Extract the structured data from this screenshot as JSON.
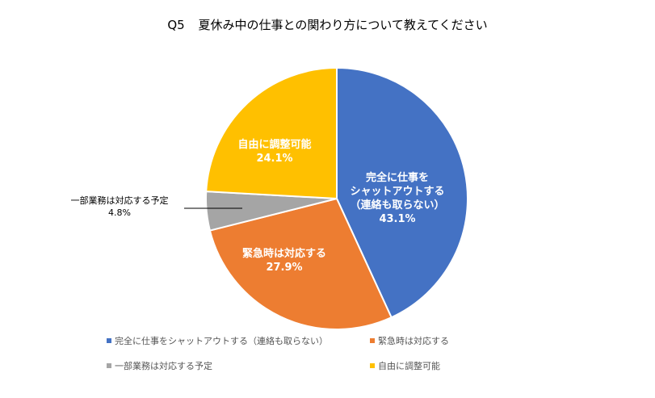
{
  "chart_data": {
    "type": "pie",
    "title_prefix": "Q5",
    "title": "夏休み中の仕事との関わり方について教えてください",
    "slices": [
      {
        "name": "完全に仕事をシャットアウトする（連絡も取らない）",
        "label": "完全に仕事を\nシャットアウトする\n（連絡も取らない）",
        "value": 43.1,
        "value_label": "43.1%",
        "color": "#4472C4"
      },
      {
        "name": "緊急時は対応する",
        "label": "緊急時は対応する",
        "value": 27.9,
        "value_label": "27.9%",
        "color": "#ED7D31"
      },
      {
        "name": "一部業務は対応する予定",
        "label": "一部業務は対応する予定",
        "value": 4.8,
        "value_label": "4.8%",
        "color": "#A5A5A5"
      },
      {
        "name": "自由に調整可能",
        "label": "自由に調整可能",
        "value": 24.1,
        "value_label": "24.1%",
        "color": "#FFC000"
      }
    ],
    "legend_placement": "bottom"
  }
}
